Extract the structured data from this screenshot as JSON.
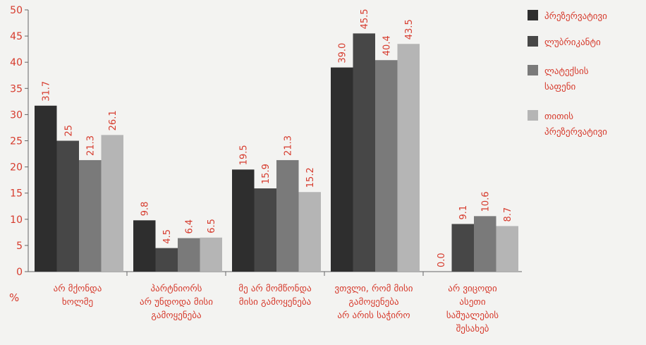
{
  "chart_data": {
    "type": "bar",
    "ylabel": "%",
    "ylim": [
      0,
      50
    ],
    "yticks": [
      "0",
      "5",
      "10",
      "15",
      "20",
      "25",
      "30",
      "35",
      "40",
      "45",
      "50"
    ],
    "grid": false,
    "legend_position": "right",
    "categories": [
      [
        "არ მქონდა",
        "ხოლმე"
      ],
      [
        "პარტნიორს",
        "არ უნდოდა მისი",
        "გამოყენება"
      ],
      [
        "მე არ მომწონდა",
        "მისი გამოყენება"
      ],
      [
        "ვთვლი, რომ მისი",
        "გამოყენება",
        "არ არის საჭირო"
      ],
      [
        "არ ვიცოდი",
        "ასეთი",
        "საშუალების",
        "შესახებ"
      ]
    ],
    "series": [
      {
        "name": [
          "პრეზერვატივი"
        ],
        "color": "#2e2e2e",
        "values": [
          31.7,
          9.8,
          19.5,
          39.0,
          0.0
        ],
        "labels": [
          "31.7",
          "9.8",
          "19.5",
          "39.0",
          "0.0"
        ]
      },
      {
        "name": [
          "ლუბრიკანტი"
        ],
        "color": "#474747",
        "values": [
          25,
          4.5,
          15.9,
          45.5,
          9.1
        ],
        "labels": [
          "25",
          "4.5",
          "15.9",
          "45.5",
          "9.1"
        ]
      },
      {
        "name": [
          "ლატექსის",
          "საფენი"
        ],
        "color": "#7a7a7a",
        "values": [
          21.3,
          6.4,
          21.3,
          40.4,
          10.6
        ],
        "labels": [
          "21.3",
          "6.4",
          "21.3",
          "40.4",
          "10.6"
        ]
      },
      {
        "name": [
          "თითის",
          "პრეზერვატივი"
        ],
        "color": "#b5b5b5",
        "values": [
          26.1,
          6.5,
          15.2,
          43.5,
          8.7
        ],
        "labels": [
          "26.1",
          "6.5",
          "15.2",
          "43.5",
          "8.7"
        ]
      }
    ],
    "text_color": "#d63a2c"
  }
}
